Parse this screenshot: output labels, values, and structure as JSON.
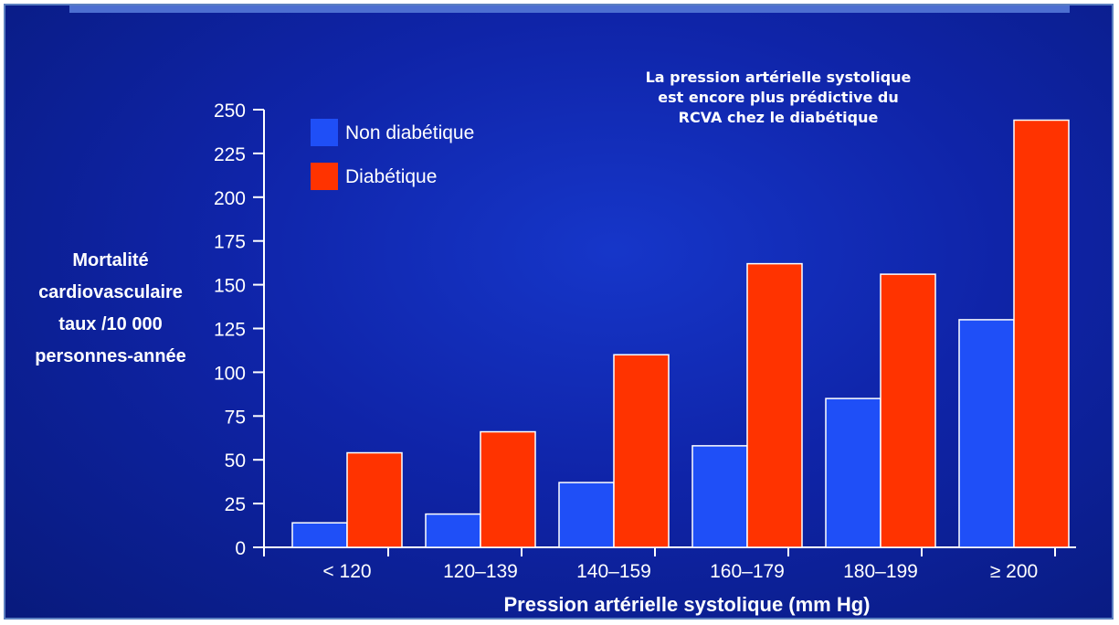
{
  "chart_data": {
    "type": "bar",
    "annotation": [
      "La pression artérielle systolique",
      "est encore plus prédictive du",
      "RCVA chez le diabétique"
    ],
    "ylabel": [
      "Mortalité",
      "cardiovasculaire",
      "taux /10 000",
      "personnes-année"
    ],
    "xlabel": "Pression artérielle systolique (mm Hg)",
    "categories": [
      "< 120",
      "120–139",
      "140–159",
      "160–179",
      "180–199",
      "≥ 200"
    ],
    "series": [
      {
        "name": "Non diabétique",
        "color": "#1f4ff7",
        "values": [
          14,
          19,
          37,
          58,
          85,
          130
        ]
      },
      {
        "name": "Diabétique",
        "color": "#ff3300",
        "values": [
          54,
          66,
          110,
          162,
          156,
          244
        ]
      }
    ],
    "ylim": [
      0,
      250
    ],
    "yticks": [
      "0",
      "25",
      "50",
      "75",
      "100",
      "125",
      "150",
      "175",
      "200",
      "225",
      "250"
    ],
    "legend_position": "top-left",
    "grid": false
  }
}
